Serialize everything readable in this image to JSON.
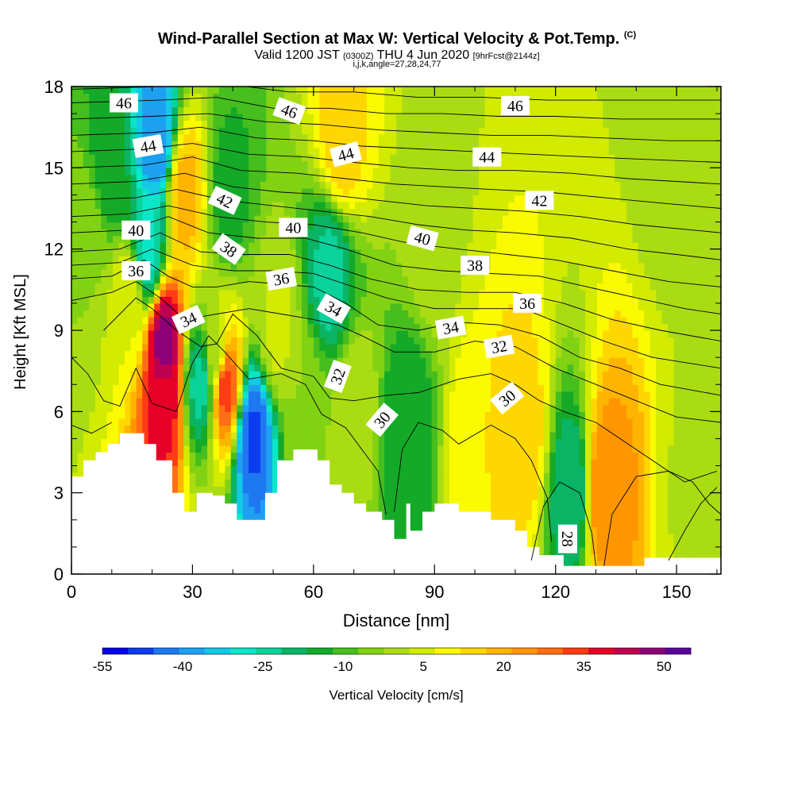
{
  "chart_data": {
    "type": "heatmap",
    "title": "Wind-Parallel Section at Max W: Vertical Velocity & Pot.Temp.",
    "title_mark": "(C)",
    "subtitle_main": "Valid 1200 JST",
    "subtitle_utc": "(0300Z)",
    "subtitle_date": "THU 4 Jun 2020",
    "subtitle_fcst": "[9hrFcst@2144z]",
    "subtitle2": "i,j,k,angle=27,28,24,77",
    "xlabel": "Distance [nm]",
    "ylabel": "Height [Kft MSL]",
    "xlim": [
      0,
      161
    ],
    "ylim": [
      0,
      18
    ],
    "x_ticks": [
      "0",
      "30",
      "60",
      "90",
      "120",
      "150"
    ],
    "x_tick_values": [
      0,
      30,
      60,
      90,
      120,
      150
    ],
    "y_ticks": [
      "0",
      "3",
      "6",
      "9",
      "12",
      "15",
      "18"
    ],
    "y_tick_values": [
      0,
      3,
      6,
      9,
      12,
      15,
      18
    ],
    "colorbar": {
      "label": "Vertical Velocity [cm/s]",
      "tick_labels": [
        "-55",
        "-40",
        "-25",
        "-10",
        "5",
        "20",
        "35",
        "50"
      ],
      "tick_values": [
        -55,
        -40,
        -25,
        -10,
        5,
        20,
        35,
        50
      ],
      "levels": [
        -55,
        -50,
        -45,
        -40,
        -35,
        -30,
        -25,
        -20,
        -15,
        -10,
        -5,
        0,
        5,
        10,
        15,
        20,
        25,
        30,
        35,
        40,
        45,
        50,
        55
      ],
      "colors": [
        "#0000ee",
        "#0a3cf0",
        "#1e78f0",
        "#1ea0f0",
        "#14c8e6",
        "#0ae6c8",
        "#0ad29b",
        "#0ab464",
        "#14aa28",
        "#46be1e",
        "#82d214",
        "#aadc14",
        "#d2eb00",
        "#fafa00",
        "#ffd700",
        "#ffb400",
        "#ff9600",
        "#ff6e14",
        "#ff3c14",
        "#e60028",
        "#be0050",
        "#8c0078",
        "#5a0096"
      ]
    },
    "vertical_velocity_cells": [
      {
        "x": 4,
        "z": 12,
        "w": 0
      },
      {
        "x": 10,
        "z": 15,
        "w": -14
      },
      {
        "x": 14,
        "z": 10,
        "w": 10
      },
      {
        "x": 19,
        "z": 12,
        "w": -26
      },
      {
        "x": 21,
        "z": 16,
        "w": -40
      },
      {
        "x": 23,
        "z": 8.5,
        "w": 52
      },
      {
        "x": 23,
        "z": 6.3,
        "w": 42
      },
      {
        "x": 28,
        "z": 14,
        "w": 22
      },
      {
        "x": 32,
        "z": 7,
        "w": -22
      },
      {
        "x": 36,
        "z": 8,
        "w": 2
      },
      {
        "x": 38,
        "z": 7,
        "w": 38
      },
      {
        "x": 39,
        "z": 14,
        "w": -12
      },
      {
        "x": 45,
        "z": 5,
        "w": -46
      },
      {
        "x": 51,
        "z": 9,
        "w": 6
      },
      {
        "x": 58,
        "z": 6,
        "w": 0
      },
      {
        "x": 64,
        "z": 11,
        "w": -22
      },
      {
        "x": 67,
        "z": 16,
        "w": 18
      },
      {
        "x": 70,
        "z": 6,
        "w": 4
      },
      {
        "x": 83,
        "z": 5,
        "w": -15
      },
      {
        "x": 90,
        "z": 13,
        "w": 4
      },
      {
        "x": 100,
        "z": 4,
        "w": 15
      },
      {
        "x": 112,
        "z": 5,
        "w": 18
      },
      {
        "x": 124,
        "z": 3,
        "w": -20
      },
      {
        "x": 132,
        "z": 3,
        "w": 30
      },
      {
        "x": 150,
        "z": 16,
        "w": 2
      },
      {
        "x": 156,
        "z": 3,
        "w": 4
      }
    ],
    "theta_contour_labels": [
      {
        "value": "46",
        "x": 13,
        "z": 17.4,
        "angle": 0
      },
      {
        "value": "46",
        "x": 54,
        "z": 17.1,
        "angle": 20
      },
      {
        "value": "46",
        "x": 110,
        "z": 17.3,
        "angle": 0
      },
      {
        "value": "44",
        "x": 19,
        "z": 15.8,
        "angle": -10
      },
      {
        "value": "44",
        "x": 68,
        "z": 15.5,
        "angle": -15
      },
      {
        "value": "44",
        "x": 103,
        "z": 15.4,
        "angle": 0
      },
      {
        "value": "42",
        "x": 38,
        "z": 13.8,
        "angle": 25
      },
      {
        "value": "42",
        "x": 116,
        "z": 13.8,
        "angle": 0
      },
      {
        "value": "40",
        "x": 16,
        "z": 12.7,
        "angle": 0
      },
      {
        "value": "40",
        "x": 55,
        "z": 12.8,
        "angle": 0
      },
      {
        "value": "40",
        "x": 87,
        "z": 12.4,
        "angle": 15
      },
      {
        "value": "38",
        "x": 39,
        "z": 12.0,
        "angle": 35
      },
      {
        "value": "38",
        "x": 100,
        "z": 11.4,
        "angle": 0
      },
      {
        "value": "36",
        "x": 16,
        "z": 11.2,
        "angle": 0
      },
      {
        "value": "36",
        "x": 52,
        "z": 10.9,
        "angle": -10
      },
      {
        "value": "36",
        "x": 113,
        "z": 10.0,
        "angle": 0
      },
      {
        "value": "34",
        "x": 29,
        "z": 9.4,
        "angle": -25
      },
      {
        "value": "34",
        "x": 65,
        "z": 9.8,
        "angle": 30
      },
      {
        "value": "34",
        "x": 94,
        "z": 9.1,
        "angle": -10
      },
      {
        "value": "32",
        "x": 66,
        "z": 7.3,
        "angle": -70
      },
      {
        "value": "32",
        "x": 106,
        "z": 8.4,
        "angle": -10
      },
      {
        "value": "30",
        "x": 77,
        "z": 5.7,
        "angle": -50
      },
      {
        "value": "30",
        "x": 108,
        "z": 6.5,
        "angle": -40
      },
      {
        "value": "28",
        "x": 123,
        "z": 1.3,
        "angle": 90
      }
    ]
  }
}
